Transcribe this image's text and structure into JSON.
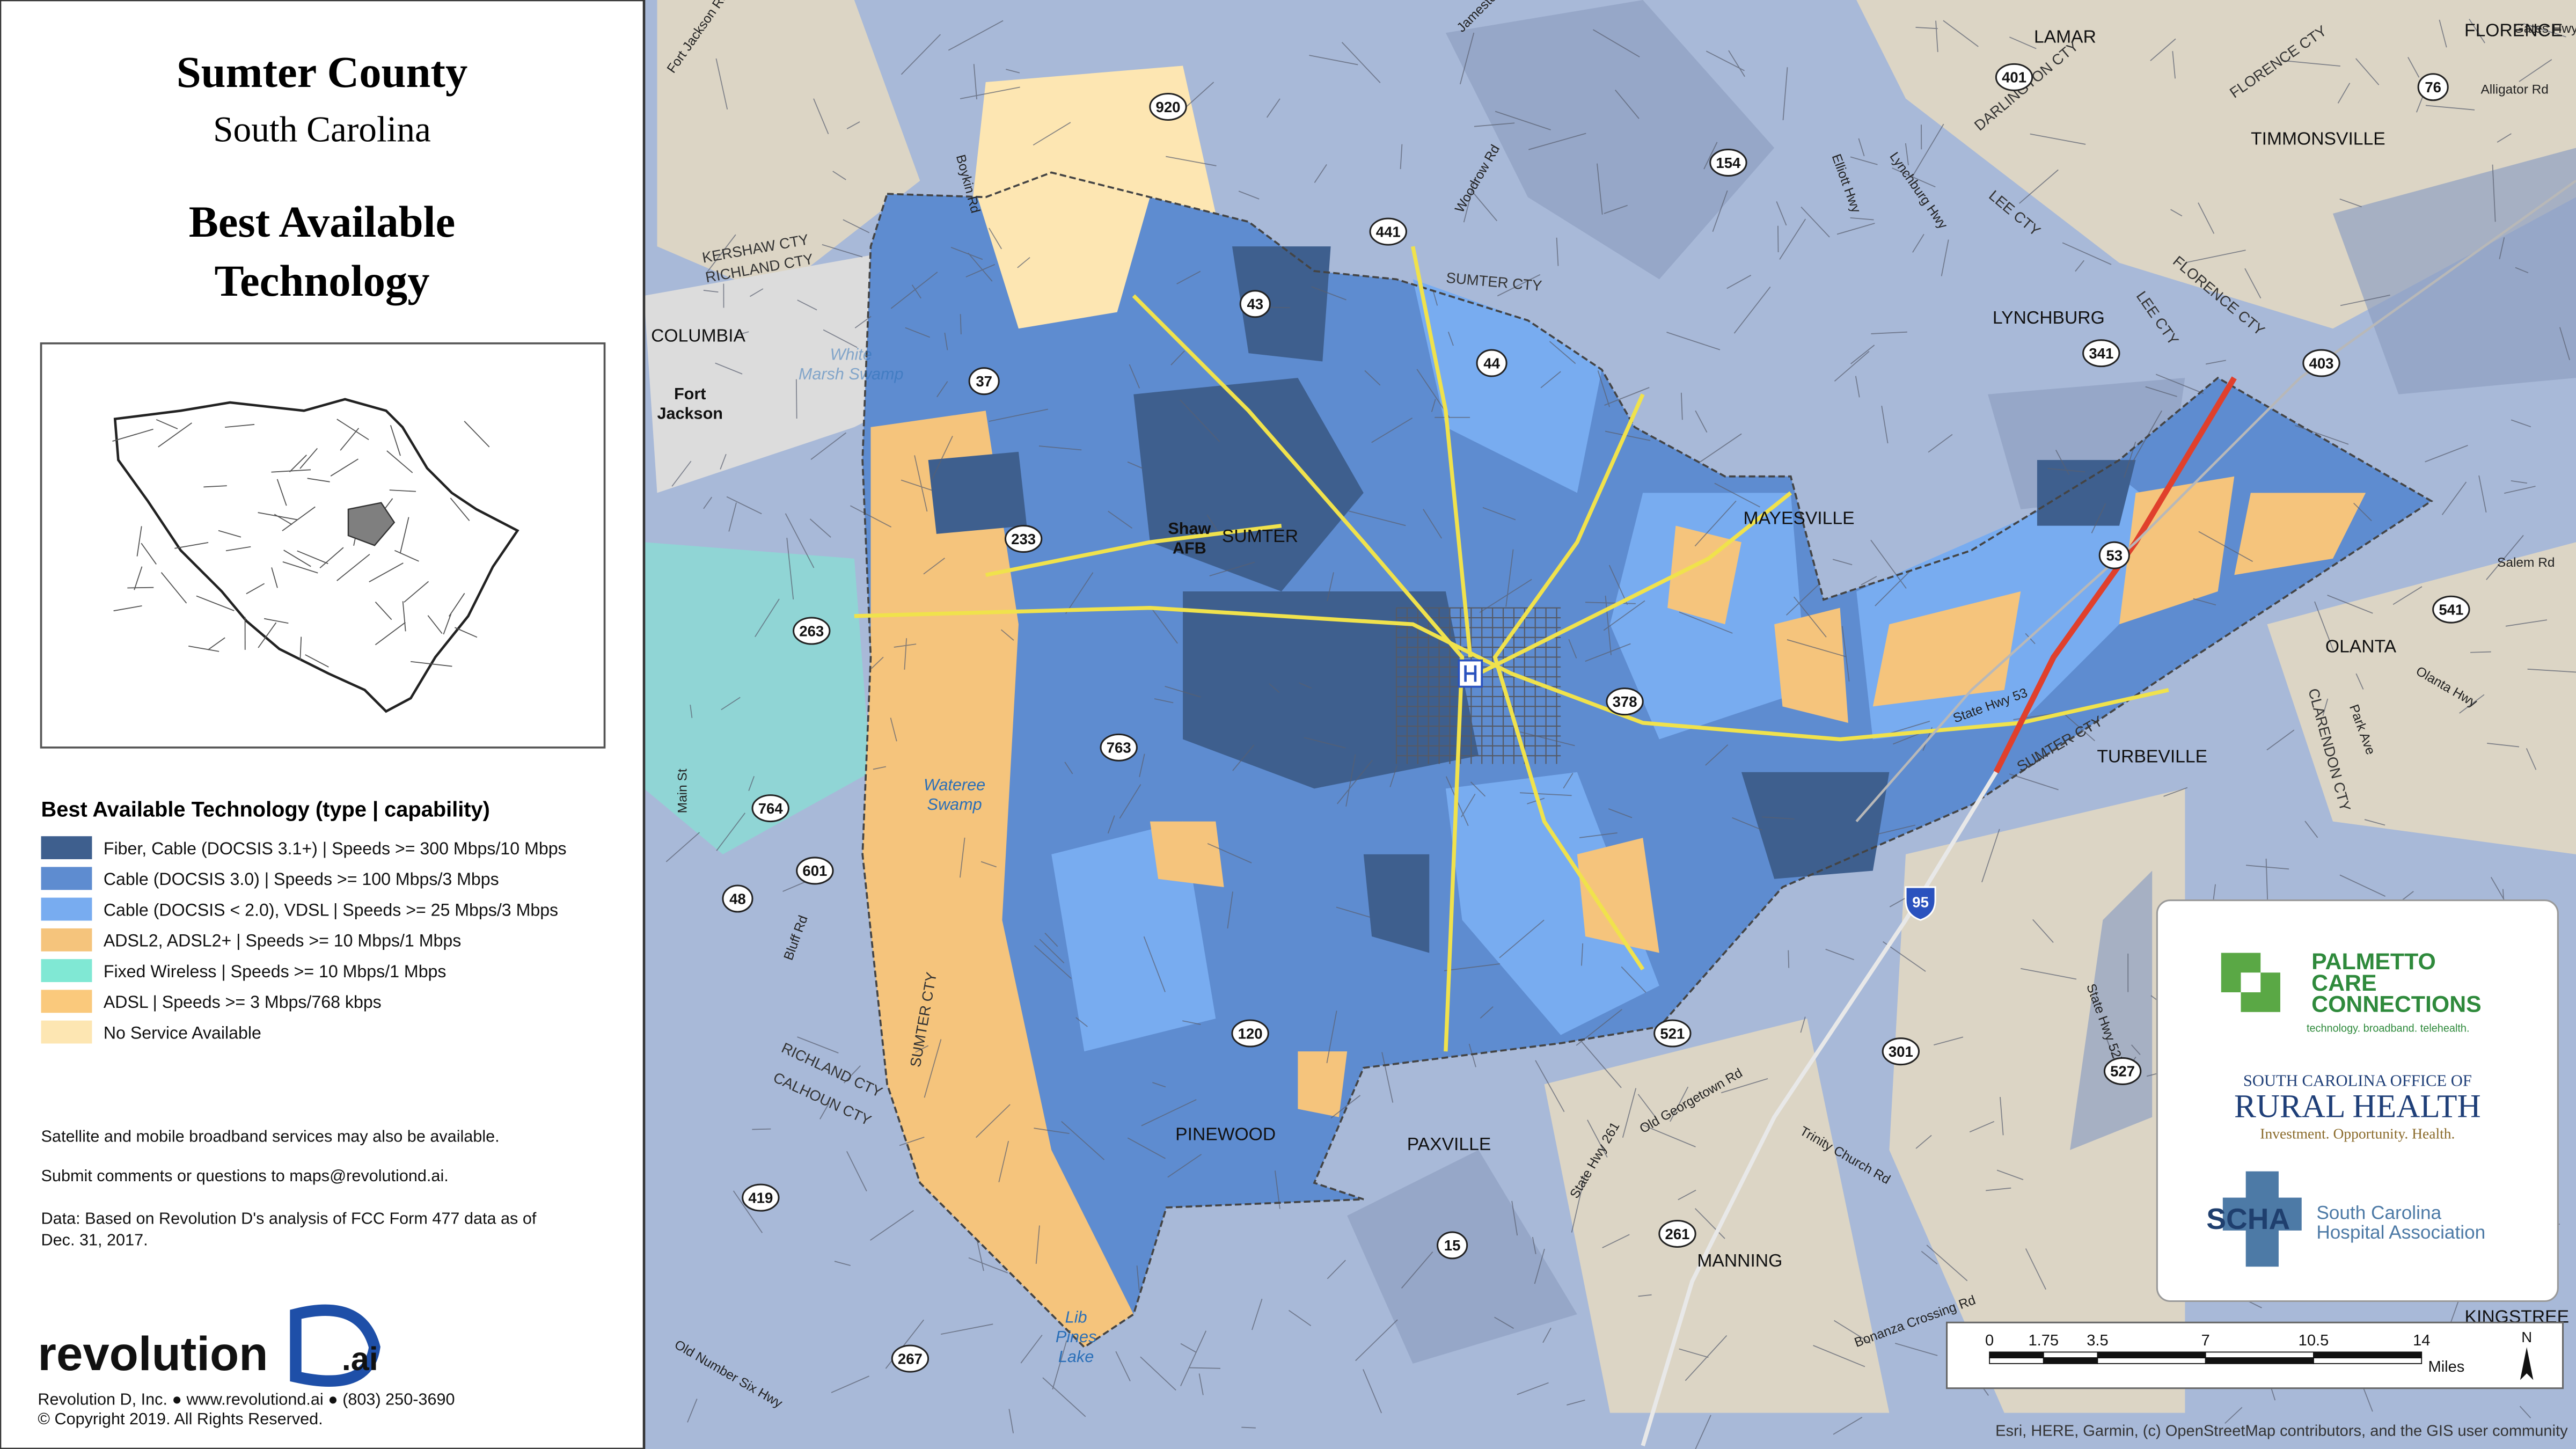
{
  "title": "Sumter County",
  "subtitle": "South Carolina",
  "heading": [
    "Best Available",
    "Technology"
  ],
  "legend": {
    "title": "Best Available Technology (type | capability)",
    "items": [
      {
        "label": "Fiber, Cable (DOCSIS 3.1+) | Speeds >= 300 Mbps/10 Mbps",
        "color": "#3e5f8e"
      },
      {
        "label": "Cable (DOCSIS 3.0) | Speeds >= 100 Mbps/3 Mbps",
        "color": "#5e8cd0"
      },
      {
        "label": "Cable (DOCSIS < 2.0), VDSL | Speeds >= 25 Mbps/3 Mbps",
        "color": "#78acf0"
      },
      {
        "label": "ADSL2, ADSL2+ | Speeds >= 10 Mbps/1 Mbps",
        "color": "#f5c47c"
      },
      {
        "label": "Fixed Wireless | Speeds >= 10 Mbps/1 Mbps",
        "color": "#80e8d4"
      },
      {
        "label": " ADSL | Speeds >= 3 Mbps/768 kbps",
        "color": "#fac97c"
      },
      {
        "label": "No Service Available",
        "color": "#fde6b2"
      }
    ]
  },
  "notes": [
    "Satellite and mobile broadband services may also be available.",
    "Submit comments or questions to maps@revolutiond.ai.",
    "Data: Based on Revolution D's analysis of FCC Form 477 data as of",
    "Dec. 31, 2017."
  ],
  "logo": {
    "name": "revolution",
    "suffix": ".ai"
  },
  "footer": [
    "Revolution D, Inc. ● www.revolutiond.ai ● (803) 250-3690",
    "© Copyright 2019. All Rights Reserved."
  ],
  "places": [
    "LAMAR",
    "FLORENCE",
    "TIMMONSVILLE",
    "COLUMBIA",
    "LYNCHBURG",
    "MAYESVILLE",
    "SUMTER",
    "OLANTA",
    "TURBEVILLE",
    "PINEWOOD",
    "PAXVILLE",
    "MANNING",
    "KINGSTREE"
  ],
  "bases": [
    [
      "Fort",
      "Jackson"
    ],
    [
      "Shaw",
      "AFB"
    ]
  ],
  "water": [
    [
      "Wateree",
      "Swamp"
    ],
    [
      "White",
      "Marsh Swamp"
    ],
    [
      "Lib",
      "Pines",
      "Lake"
    ]
  ],
  "counties": [
    "KERSHAW CTY",
    "RICHLAND CTY",
    "SUMTER CTY",
    "DARLINGTON CTY",
    "LEE CTY",
    "FLORENCE CTY",
    "CLARENDON CTY",
    "CALHOUN CTY",
    "RICHLAND CTY",
    "SUMTER CTY",
    "LEE CTY",
    "SUMTER CTY",
    "FLORENCE CTY"
  ],
  "routes": [
    "920",
    "401",
    "76",
    "154",
    "441",
    "43",
    "44",
    "341",
    "403",
    "37",
    "233",
    "53",
    "541",
    "263",
    "378",
    "763",
    "764",
    "601",
    "48",
    "95",
    "120",
    "521",
    "301",
    "527",
    "419",
    "261",
    "15",
    "267"
  ],
  "road_names": [
    "Boykin Rd",
    "Jamestown Rd",
    "Woodrow Rd",
    "Lynchburg Hwy",
    "Elliott Hwy",
    "State Hwy 53",
    "Old Georgetown Rd",
    "Trinity Church Rd",
    "State Hwy 527",
    "Bluff Rd",
    "Main St",
    "State Hwy 261",
    "Fort Jackson Rd",
    "Gates Hwy",
    "Alligator Rd",
    "Salem Rd",
    "Olanta Hwy",
    "Park Ave",
    "Bonanza Crossing Rd",
    "Old Number Six Hwy"
  ],
  "partners": {
    "pcc": {
      "lines": [
        "PALMETTO",
        "CARE",
        "CONNECTIONS"
      ],
      "tagline": "technology. broadband. telehealth."
    },
    "orh": {
      "top": "SOUTH CAROLINA OFFICE OF",
      "name": "RURAL HEALTH",
      "tagline": "Investment. Opportunity. Health."
    },
    "scha": {
      "abbr": "SCHA",
      "lines": [
        "South Carolina",
        "Hospital Association"
      ]
    }
  },
  "scale": {
    "ticks": [
      0,
      1.75,
      3.5,
      7,
      10.5,
      14
    ],
    "unit": "Miles"
  },
  "north": "N",
  "attribution": "Esri, HERE, Garmin, (c) OpenStreetMap contributors, and the GIS user community"
}
